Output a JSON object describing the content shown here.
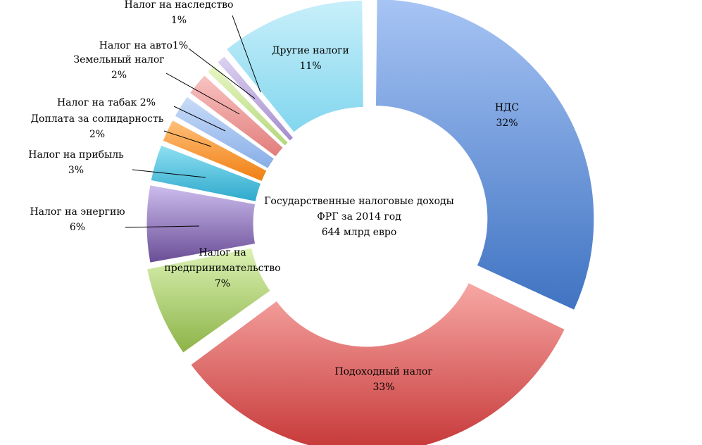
{
  "chart_data": {
    "type": "pie",
    "donut": true,
    "center_text": [
      "Государственные налоговые доходы",
      "ФРГ за 2014 год",
      "644 млрд евро"
    ],
    "slices": [
      {
        "name": "НДС",
        "value": 32,
        "value_label": "32%",
        "colors": [
          "#a7c4f4",
          "#3f73c2"
        ]
      },
      {
        "name": "Подоходный налог",
        "value": 33,
        "value_label": "33%",
        "colors": [
          "#f7a8a5",
          "#c53636"
        ]
      },
      {
        "name": "Налог на предпринимательство",
        "value": 7,
        "value_label": "7%",
        "colors": [
          "#dcf2b4",
          "#8cb347"
        ]
      },
      {
        "name": "Налог на энергию",
        "value": 6,
        "value_label": "6%",
        "colors": [
          "#cdbdee",
          "#6a4d96"
        ]
      },
      {
        "name": "Налог на прибыль",
        "value": 3,
        "value_label": "3%",
        "colors": [
          "#8fe0f2",
          "#2ea9cc"
        ]
      },
      {
        "name": "Доплата за солидарность",
        "value": 2,
        "value_label": "2%",
        "colors": [
          "#ffc07a",
          "#f07f12"
        ]
      },
      {
        "name": "Налог на табак",
        "value": 2,
        "value_label": "2%",
        "colors": [
          "#c9dcf8",
          "#87aee8"
        ]
      },
      {
        "name": "Земельный налог",
        "value": 2,
        "value_label": "2%",
        "colors": [
          "#f8c3c2",
          "#e17d7b"
        ]
      },
      {
        "name": "Налог на авто",
        "value": 1,
        "value_label": "1%",
        "colors": [
          "#e8f6c4",
          "#b5d77c"
        ]
      },
      {
        "name": "Налог на наследство",
        "value": 1,
        "value_label": "1%",
        "colors": [
          "#ddd3f2",
          "#a48ccc"
        ]
      },
      {
        "name": "Другие налоги",
        "value": 11,
        "value_label": "11%",
        "colors": [
          "#c8effa",
          "#82d6ee"
        ]
      }
    ],
    "labels": [
      {
        "lines": [
          "НДС",
          "32%"
        ]
      },
      {
        "lines": [
          "Подоходный налог",
          "33%"
        ]
      },
      {
        "lines": [
          "Налог на",
          "предпринимательство",
          "7%"
        ]
      },
      {
        "lines": [
          "Налог на энергию",
          "6%"
        ]
      },
      {
        "lines": [
          "Налог на прибыль",
          "3%"
        ]
      },
      {
        "lines": [
          "Доплата за солидарность",
          "2%"
        ]
      },
      {
        "lines": [
          "Налог на табак 2%"
        ]
      },
      {
        "lines": [
          "Земельный налог",
          "2%"
        ]
      },
      {
        "lines": [
          "Налог на авто1%"
        ]
      },
      {
        "lines": [
          "Налог на наследство",
          "1%"
        ]
      },
      {
        "lines": [
          "Другие налоги",
          "11%"
        ]
      }
    ]
  }
}
